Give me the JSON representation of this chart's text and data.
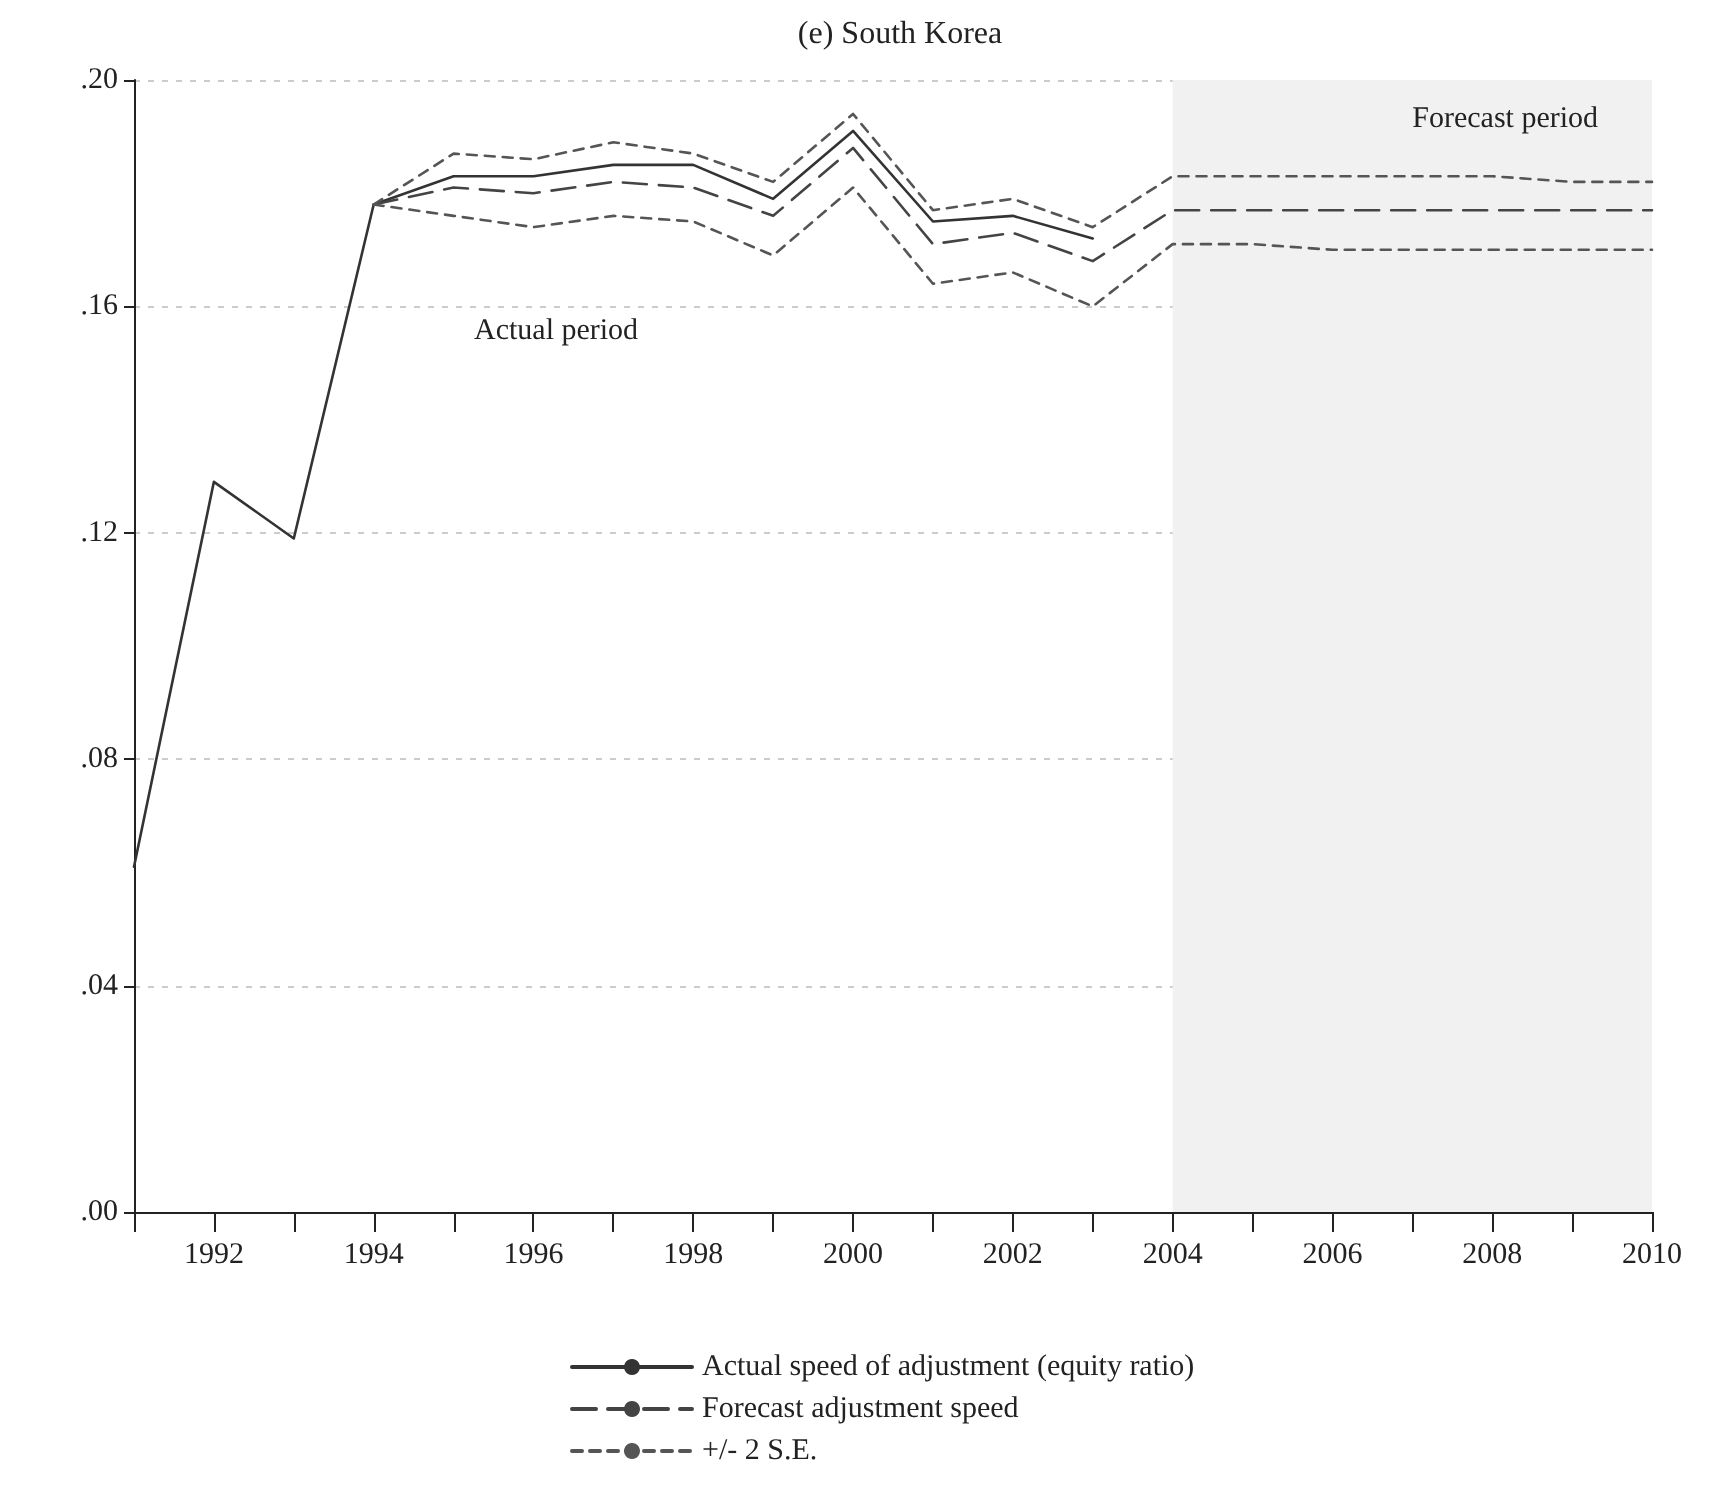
{
  "chart_data": {
    "type": "line",
    "title": "(e) South Korea",
    "series": [
      {
        "name": "Actual speed of adjustment (equity ratio)",
        "color": "#333333",
        "line_style": "solid",
        "x": [
          1991,
          1992,
          1993,
          1994,
          1995,
          1996,
          1997,
          1998,
          1999,
          2000,
          2001,
          2002,
          2003
        ],
        "values": [
          0.061,
          0.129,
          0.119,
          0.178,
          0.183,
          0.183,
          0.185,
          0.185,
          0.179,
          0.191,
          0.175,
          0.176,
          0.172
        ]
      },
      {
        "name": "Forecast adjustment speed",
        "color": "#444444",
        "line_style": "dashed",
        "x": [
          1994,
          1995,
          1996,
          1997,
          1998,
          1999,
          2000,
          2001,
          2002,
          2003,
          2004,
          2005,
          2006,
          2007,
          2008,
          2009,
          2010
        ],
        "values": [
          0.178,
          0.181,
          0.18,
          0.182,
          0.181,
          0.176,
          0.188,
          0.171,
          0.173,
          0.168,
          0.177,
          0.177,
          0.177,
          0.177,
          0.177,
          0.177,
          0.177
        ]
      },
      {
        "name": "+/- 2 S.E.",
        "color": "#555555",
        "line_style": "dotted",
        "x": [
          1994,
          1995,
          1996,
          1997,
          1998,
          1999,
          2000,
          2001,
          2002,
          2003,
          2004,
          2005,
          2006,
          2007,
          2008,
          2009,
          2010
        ],
        "values": [
          0.178,
          0.187,
          0.186,
          0.189,
          0.187,
          0.182,
          0.194,
          0.177,
          0.179,
          0.174,
          0.183,
          0.183,
          0.183,
          0.183,
          0.183,
          0.182,
          0.182
        ]
      },
      {
        "color": "#555555",
        "line_style": "dotted",
        "x": [
          1994,
          1995,
          1996,
          1997,
          1998,
          1999,
          2000,
          2001,
          2002,
          2003,
          2004,
          2005,
          2006,
          2007,
          2008,
          2009,
          2010
        ],
        "values": [
          0.178,
          0.176,
          0.174,
          0.176,
          0.175,
          0.169,
          0.181,
          0.164,
          0.166,
          0.16,
          0.171,
          0.171,
          0.17,
          0.17,
          0.17,
          0.17,
          0.17
        ]
      }
    ],
    "xlim": [
      1991,
      2010
    ],
    "xticks": [
      {
        "value": 1991,
        "label": null
      },
      1992,
      {
        "value": 1993,
        "label": null
      },
      1994,
      {
        "value": 1995,
        "label": null
      },
      1996,
      {
        "value": 1997,
        "label": null
      },
      1998,
      {
        "value": 1999,
        "label": null
      },
      2000,
      {
        "value": 2001,
        "label": null
      },
      2002,
      {
        "value": 2003,
        "label": null
      },
      2004,
      {
        "value": 2005,
        "label": null
      },
      2006,
      {
        "value": 2007,
        "label": null
      },
      2008,
      {
        "value": 2009,
        "label": null
      },
      2010
    ],
    "ylim": [
      0,
      0.2
    ],
    "yticks": [
      {
        "value": 0,
        "label": ".00"
      },
      {
        "value": 0.04,
        "label": ".04"
      },
      {
        "value": 0.08,
        "label": ".08"
      },
      {
        "value": 0.12,
        "label": ".12"
      },
      {
        "value": 0.16,
        "label": ".16"
      },
      {
        "value": 0.2,
        "label": ".20"
      }
    ],
    "bands": [
      {
        "axis": "x",
        "from": 2004,
        "to": 2010,
        "label": "Forecast period",
        "color": "#f1f1f1"
      }
    ],
    "annotations": [
      "Actual period"
    ],
    "grid": "y",
    "legend": "bottom",
    "marker": "none"
  }
}
